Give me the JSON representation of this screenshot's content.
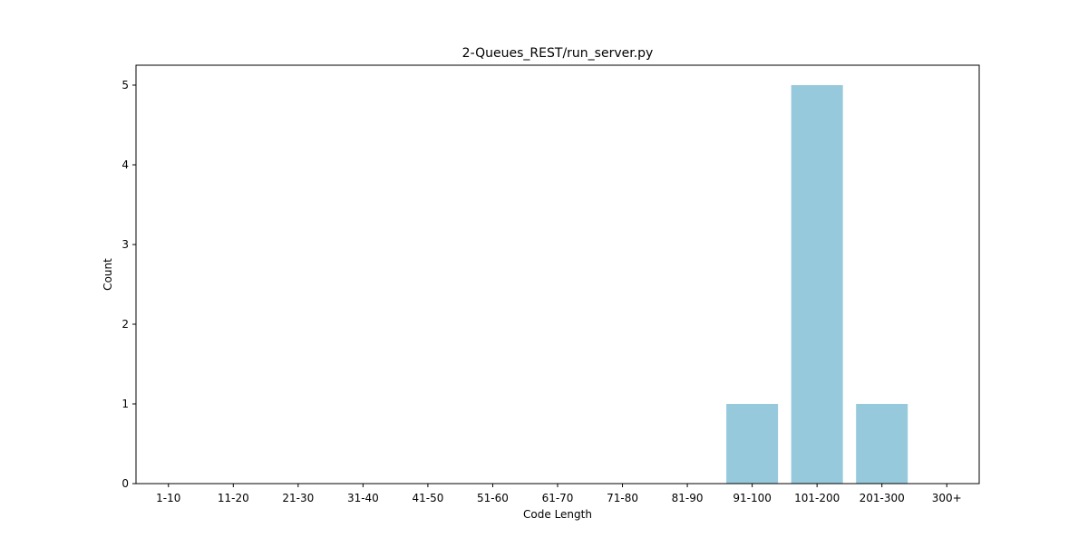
{
  "chart_data": {
    "type": "bar",
    "title": "2-Queues_REST/run_server.py",
    "xlabel": "Code Length",
    "ylabel": "Count",
    "categories": [
      "1-10",
      "11-20",
      "21-30",
      "31-40",
      "41-50",
      "51-60",
      "61-70",
      "71-80",
      "81-90",
      "91-100",
      "101-200",
      "201-300",
      "300+"
    ],
    "values": [
      0,
      0,
      0,
      0,
      0,
      0,
      0,
      0,
      0,
      1,
      5,
      1,
      0
    ],
    "ylim": [
      0,
      5.25
    ],
    "yticks": [
      0,
      1,
      2,
      3,
      4,
      5
    ],
    "grid": false,
    "bar_color": "#96c9dc",
    "axis_color": "#000000"
  }
}
